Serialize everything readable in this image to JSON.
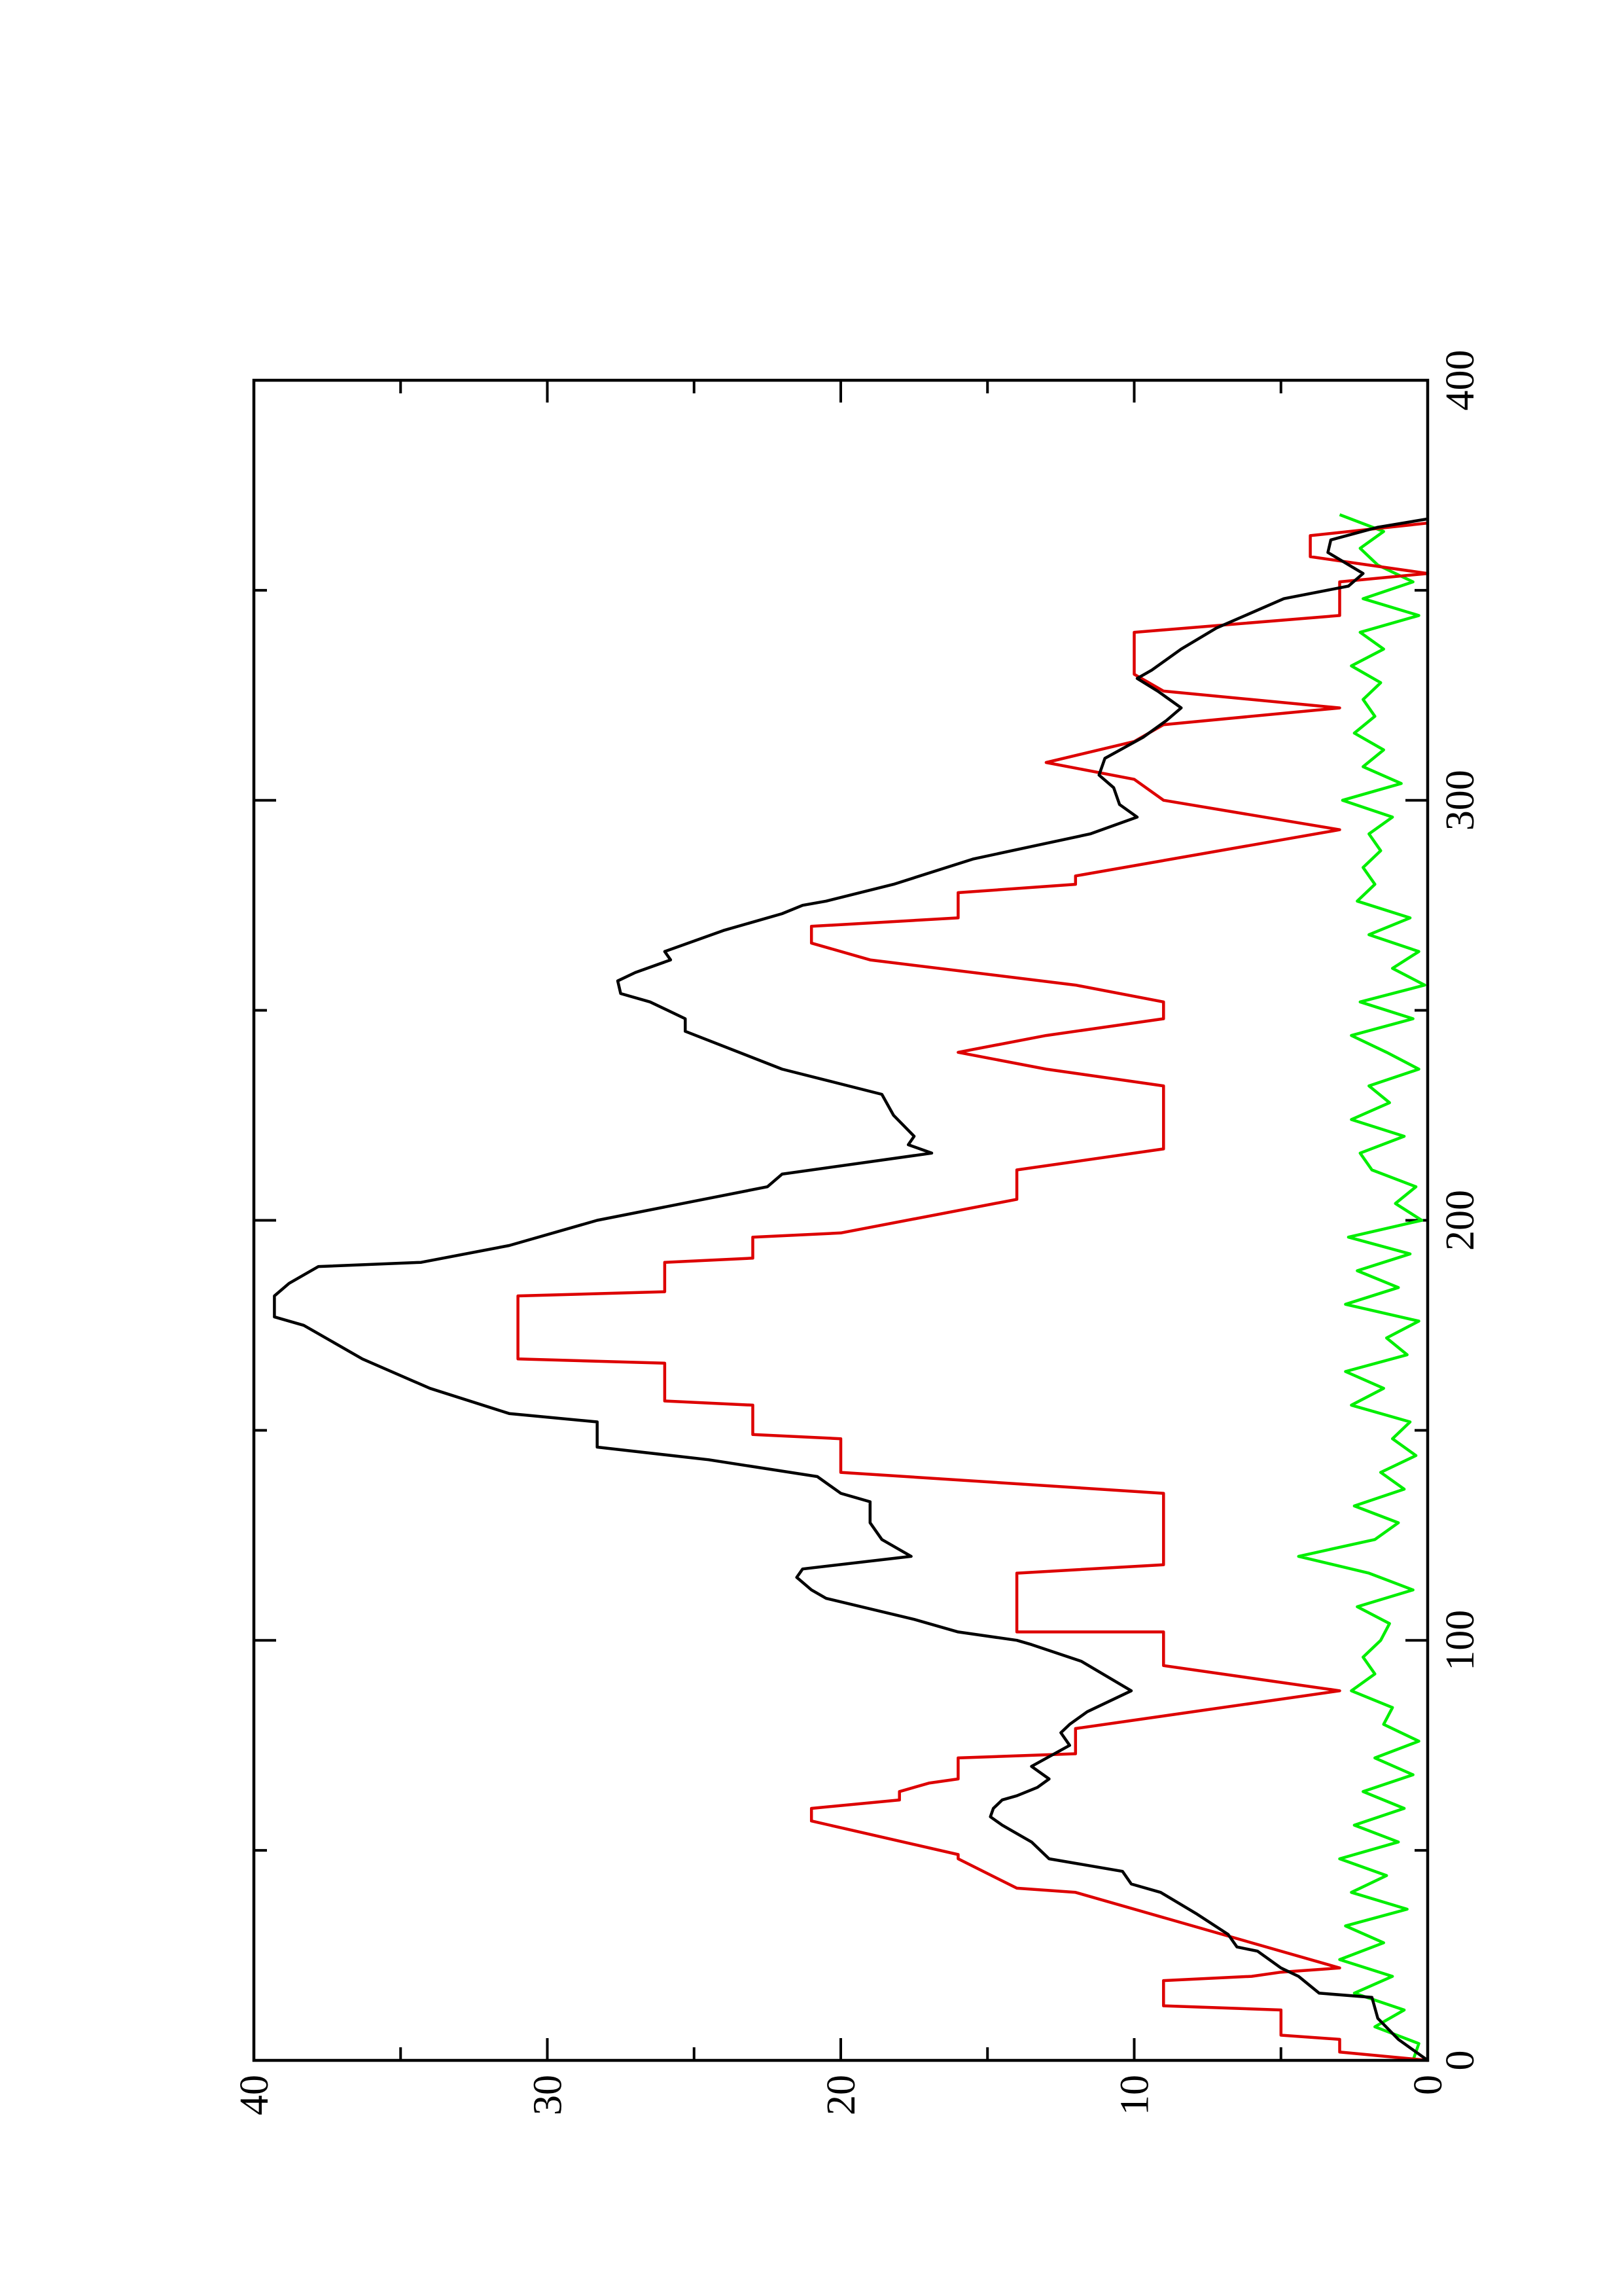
{
  "chart_data": {
    "type": "line",
    "xlim": [
      0,
      400
    ],
    "xticks": [
      0,
      100,
      200,
      300,
      400
    ],
    "ylim": [
      0,
      40
    ],
    "yticks": [
      0,
      10,
      20,
      30,
      40
    ],
    "rotated": true,
    "series": [
      {
        "color": "#00ee00",
        "x": [
          0,
          4,
          8,
          12,
          16,
          20,
          24,
          28,
          32,
          36,
          40,
          44,
          48,
          52,
          56,
          60,
          64,
          68,
          72,
          76,
          80,
          84,
          88,
          92,
          96,
          100,
          104,
          108,
          112,
          116,
          120,
          124,
          128,
          132,
          136,
          140,
          144,
          148,
          152,
          156,
          160,
          164,
          168,
          172,
          176,
          180,
          184,
          188,
          192,
          196,
          200,
          204,
          208,
          212,
          216,
          220,
          224,
          228,
          232,
          236,
          240,
          244,
          248,
          252,
          256,
          260,
          264,
          268,
          272,
          276,
          280,
          284,
          288,
          292,
          296,
          300,
          304,
          308,
          312,
          316,
          320,
          324,
          328,
          332,
          336,
          340,
          344,
          348,
          352,
          356,
          360,
          364,
          368
        ],
        "values": [
          0.5,
          0.3,
          1.8,
          0.8,
          2.5,
          1.2,
          3,
          1.5,
          2.8,
          0.7,
          2.6,
          1.4,
          3,
          1,
          2.5,
          0.8,
          2.2,
          0.5,
          1.8,
          0.3,
          1.5,
          1.2,
          2.6,
          1.8,
          2.2,
          1.6,
          1.3,
          2.4,
          0.5,
          2,
          4.4,
          1.8,
          1,
          2.5,
          0.8,
          1.6,
          0.4,
          1.2,
          0.6,
          2.6,
          1.5,
          2.8,
          0.7,
          1.4,
          0.3,
          2.8,
          1,
          2.4,
          0.6,
          2.7,
          0.2,
          1.1,
          0.4,
          1.9,
          2.3,
          0.8,
          2.6,
          1.3,
          2,
          0.3,
          1.4,
          2.6,
          0.5,
          2.3,
          0.1,
          1.2,
          0.3,
          2,
          0.6,
          2.4,
          1.8,
          2.2,
          1.6,
          2,
          1.2,
          2.9,
          0.9,
          2.2,
          1.5,
          2.5,
          1.8,
          2.2,
          1.6,
          2.6,
          1.5,
          2.3,
          0.3,
          2.2,
          0.5,
          1.7,
          2.3,
          1.5,
          3
        ]
      },
      {
        "color": "#dd0000",
        "x": [
          0,
          2,
          5,
          6,
          12,
          13,
          19,
          20,
          21,
          22,
          40,
          41,
          48,
          49,
          57,
          60,
          62,
          64,
          66,
          67,
          72,
          73,
          79,
          88,
          94,
          102,
          102,
          116,
          118,
          135,
          140,
          148,
          149,
          156,
          157,
          166,
          167,
          182,
          183,
          190,
          191,
          196,
          197,
          205,
          212,
          217,
          232,
          236,
          240,
          244,
          248,
          252,
          256,
          262,
          266,
          270,
          272,
          278,
          280,
          282,
          293,
          300,
          305,
          309,
          314,
          318,
          322,
          326,
          330,
          340,
          344,
          352,
          354,
          358,
          363,
          366
        ],
        "values": [
          0,
          3,
          3,
          5,
          5,
          9,
          9,
          6,
          5,
          3,
          12,
          14,
          16,
          16,
          21,
          21,
          18,
          18,
          17,
          16,
          16,
          12,
          12,
          3,
          9,
          9,
          14,
          14,
          9,
          9,
          20,
          20,
          23,
          23,
          26,
          26,
          31,
          31,
          26,
          26,
          23,
          23,
          20,
          14,
          14,
          9,
          9,
          13,
          16,
          13,
          9,
          9,
          12,
          19,
          21,
          21,
          16,
          16,
          12,
          12,
          3,
          9,
          10,
          13,
          10,
          9,
          3,
          9,
          10,
          10,
          3,
          3,
          0,
          4,
          4,
          0
        ]
      },
      {
        "color": "#000000",
        "x": [
          0,
          5,
          10,
          15,
          16,
          20,
          22,
          26,
          27,
          30,
          35,
          40,
          42,
          45,
          48,
          52,
          56,
          58,
          60,
          62,
          63,
          65,
          67,
          70,
          75,
          78,
          80,
          83,
          88,
          95,
          99,
          100,
          102,
          105,
          110,
          112,
          115,
          117,
          120,
          124,
          128,
          133,
          135,
          139,
          143,
          146,
          152,
          154,
          160,
          167,
          175,
          177,
          182,
          185,
          189,
          190,
          194,
          200,
          208,
          211,
          216,
          218,
          220,
          225,
          230,
          236,
          245,
          248,
          252,
          254,
          257,
          259,
          262,
          264,
          269,
          273,
          275,
          276,
          280,
          286,
          289,
          292,
          296,
          299,
          303,
          306,
          310,
          315,
          319,
          322,
          326,
          329,
          331,
          336,
          341,
          348,
          351,
          354,
          359,
          362,
          365,
          367
        ],
        "values": [
          0,
          1,
          1.7,
          1.9,
          3.7,
          4.4,
          5,
          5.8,
          6.5,
          6.8,
          7.9,
          9.1,
          10.1,
          10.4,
          12.9,
          13.5,
          14.5,
          14.9,
          14.8,
          14.5,
          14,
          13.3,
          12.9,
          13.5,
          12.2,
          12.5,
          12.2,
          11.6,
          10.1,
          11.8,
          13.5,
          14,
          16,
          17.5,
          20.5,
          21,
          21.5,
          21.3,
          17.6,
          18.6,
          19,
          19,
          20,
          20.8,
          24.5,
          28.3,
          28.3,
          31.3,
          34,
          36.3,
          38.3,
          39.3,
          39.3,
          38.8,
          37.8,
          34.3,
          31.3,
          28.3,
          22.5,
          22,
          16.9,
          17.7,
          17.5,
          18.2,
          18.6,
          22,
          25.3,
          25.3,
          26.5,
          27.5,
          27.6,
          27,
          25.8,
          26,
          24,
          22,
          21.3,
          20.5,
          18.2,
          15.5,
          13.5,
          11.5,
          9.9,
          10.5,
          10.7,
          11.2,
          11,
          9.7,
          8.9,
          8.4,
          9.2,
          9.9,
          9.4,
          8.4,
          7.2,
          4.9,
          2.7,
          2.2,
          3.4,
          3.3,
          1.7,
          0
        ]
      }
    ]
  }
}
